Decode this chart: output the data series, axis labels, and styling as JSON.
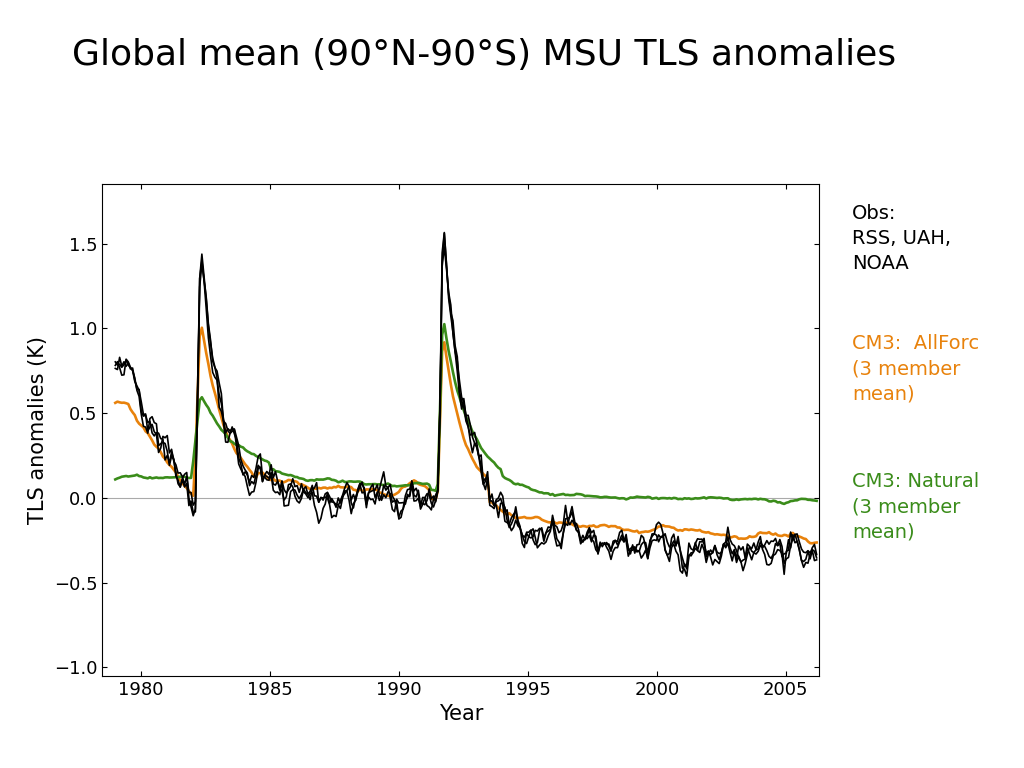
{
  "title": "Global mean (90°N-90°S) MSU TLS anomalies",
  "xlabel": "Year",
  "ylabel": "TLS anomalies (K)",
  "xlim": [
    1978.5,
    2006.3
  ],
  "ylim": [
    -1.05,
    1.85
  ],
  "yticks": [
    -1,
    -0.5,
    0,
    0.5,
    1,
    1.5
  ],
  "xticks": [
    1980,
    1985,
    1990,
    1995,
    2000,
    2005
  ],
  "background_color": "#ffffff",
  "obs_color": "#000000",
  "allforc_color": "#E8820C",
  "natural_color": "#3A8C1A",
  "legend_obs": "Obs:\nRSS, UAH,\nNOAA",
  "legend_allforc": "CM3:  AllForc\n(3 member\nmean)",
  "legend_natural": "CM3: Natural\n(3 member\nmean)",
  "title_fontsize": 26,
  "axis_fontsize": 15,
  "tick_fontsize": 13,
  "legend_fontsize": 14
}
